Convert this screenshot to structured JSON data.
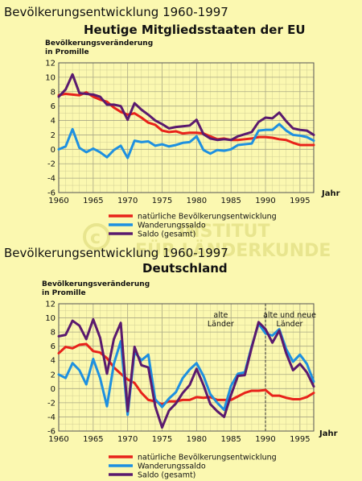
{
  "page": {
    "title1": "Bevölkerungsentwicklung 1960-1997",
    "title2": "Bevölkerungsentwicklung 1960-1997",
    "watermark": [
      "INSTITUT",
      "FÜR LÄNDERKUNDE"
    ]
  },
  "colors": {
    "background": "#fbf8b0",
    "natural": "#e8221a",
    "migration": "#1e90e0",
    "total": "#5a1a6e"
  },
  "chart_data": [
    {
      "type": "line",
      "title": "Heutige Mitgliedsstaaten der EU",
      "ylabel": "Bevölkerungsveränderung",
      "ylabel2": "in Promille",
      "xlabel": "Jahr",
      "ylim": [
        -6,
        12
      ],
      "xlim": [
        1960,
        1997
      ],
      "grid": true,
      "x_ticks": [
        1960,
        1965,
        1970,
        1975,
        1980,
        1985,
        1990,
        1995
      ],
      "y_ticks": [
        -6,
        -4,
        -2,
        0,
        2,
        4,
        6,
        8,
        10,
        12
      ],
      "annotations": [],
      "legend": [
        "natürliche Bevölkerungsentwicklung",
        "Wanderungssaldo",
        "Saldo (gesamt)"
      ],
      "x": [
        1960,
        1961,
        1962,
        1963,
        1964,
        1965,
        1966,
        1967,
        1968,
        1969,
        1970,
        1971,
        1972,
        1973,
        1974,
        1975,
        1976,
        1977,
        1978,
        1979,
        1980,
        1981,
        1982,
        1983,
        1984,
        1985,
        1986,
        1987,
        1988,
        1989,
        1990,
        1991,
        1992,
        1993,
        1994,
        1995,
        1996,
        1997
      ],
      "series": [
        {
          "name": "natürliche Bevölkerungsentwicklung",
          "color": "natural",
          "values": [
            7.5,
            7.7,
            7.6,
            7.5,
            7.9,
            7.3,
            6.9,
            6.6,
            5.8,
            5.2,
            4.8,
            5.0,
            4.4,
            3.7,
            3.4,
            2.6,
            2.4,
            2.5,
            2.2,
            2.3,
            2.3,
            2.2,
            1.8,
            1.4,
            1.5,
            1.3,
            1.3,
            1.4,
            1.5,
            1.7,
            1.7,
            1.6,
            1.4,
            1.3,
            0.9,
            0.6,
            0.6,
            0.6
          ]
        },
        {
          "name": "Wanderungssaldo",
          "color": "migration",
          "values": [
            0.0,
            0.4,
            2.8,
            0.2,
            -0.4,
            0.1,
            -0.4,
            -1.1,
            -0.1,
            0.5,
            -1.2,
            1.2,
            1.0,
            1.1,
            0.5,
            0.7,
            0.4,
            0.6,
            0.9,
            1.0,
            1.8,
            -0.1,
            -0.6,
            -0.1,
            -0.2,
            0.0,
            0.6,
            0.7,
            0.8,
            2.6,
            2.7,
            2.7,
            3.5,
            2.6,
            2.0,
            1.9,
            1.7,
            1.2
          ]
        },
        {
          "name": "Saldo (gesamt)",
          "color": "total",
          "values": [
            7.3,
            8.3,
            10.4,
            7.8,
            7.7,
            7.6,
            7.3,
            6.2,
            6.2,
            6.0,
            4.1,
            6.4,
            5.5,
            4.8,
            4.0,
            3.5,
            2.9,
            3.1,
            3.2,
            3.3,
            4.1,
            2.1,
            1.5,
            1.3,
            1.4,
            1.3,
            1.8,
            2.1,
            2.4,
            3.8,
            4.4,
            4.3,
            5.1,
            3.9,
            2.9,
            2.7,
            2.6,
            2.0
          ]
        }
      ]
    },
    {
      "type": "line",
      "title": "Deutschland",
      "ylabel": "Bevölkerungsveränderung",
      "ylabel2": "in Promille",
      "xlabel": "Jahr",
      "ylim": [
        -6,
        12
      ],
      "xlim": [
        1960,
        1997
      ],
      "grid": true,
      "x_ticks": [
        1960,
        1965,
        1970,
        1975,
        1980,
        1985,
        1990,
        1995
      ],
      "y_ticks": [
        -6,
        -4,
        -2,
        0,
        2,
        4,
        6,
        8,
        10,
        12
      ],
      "divider_x": 1990,
      "annotations": [
        {
          "x": 1983.5,
          "lines": [
            "alte",
            "Länder"
          ]
        },
        {
          "x": 1993.5,
          "lines": [
            "alte und neue",
            "Länder"
          ]
        }
      ],
      "legend": [
        "natürliche Bevölkerungsentwicklung",
        "Wanderungssaldo",
        "Saldo (gesamt)"
      ],
      "x": [
        1960,
        1961,
        1962,
        1963,
        1964,
        1965,
        1966,
        1967,
        1968,
        1969,
        1970,
        1971,
        1972,
        1973,
        1974,
        1975,
        1976,
        1977,
        1978,
        1979,
        1980,
        1981,
        1982,
        1983,
        1984,
        1985,
        1986,
        1987,
        1988,
        1989,
        1990,
        1991,
        1992,
        1993,
        1994,
        1995,
        1996,
        1997
      ],
      "series": [
        {
          "name": "natürliche Bevölkerungsentwicklung",
          "color": "natural",
          "values": [
            5.0,
            5.9,
            5.7,
            6.2,
            6.3,
            5.3,
            5.1,
            4.3,
            3.0,
            2.1,
            1.3,
            0.8,
            -0.6,
            -1.6,
            -1.8,
            -2.2,
            -1.8,
            -1.8,
            -1.6,
            -1.6,
            -1.2,
            -1.3,
            -1.2,
            -1.6,
            -1.6,
            -1.6,
            -1.1,
            -0.6,
            -0.3,
            -0.3,
            -0.2,
            -1.0,
            -1.0,
            -1.3,
            -1.5,
            -1.5,
            -1.2,
            -0.6
          ]
        },
        {
          "name": "Wanderungssaldo",
          "color": "migration",
          "values": [
            2.0,
            1.5,
            3.6,
            2.6,
            0.6,
            4.2,
            1.5,
            -2.5,
            3.5,
            6.7,
            -3.7,
            5.2,
            4.0,
            4.8,
            -1.5,
            -2.6,
            -1.4,
            -0.5,
            1.5,
            2.7,
            3.6,
            1.8,
            -0.8,
            -2.0,
            -3.0,
            0.4,
            2.1,
            2.3,
            6.0,
            9.2,
            7.8,
            7.5,
            8.4,
            5.6,
            3.8,
            4.8,
            3.5,
            1.0
          ]
        },
        {
          "name": "Saldo (gesamt)",
          "color": "total",
          "values": [
            7.4,
            7.6,
            9.6,
            8.9,
            7.0,
            9.8,
            7.2,
            2.1,
            7.0,
            9.3,
            -3.2,
            5.9,
            3.3,
            3.0,
            -2.5,
            -5.5,
            -3.1,
            -2.1,
            -0.6,
            0.5,
            2.8,
            0.5,
            -2.2,
            -3.2,
            -4.0,
            -0.9,
            1.8,
            1.9,
            5.8,
            9.4,
            8.4,
            6.5,
            8.2,
            5.0,
            2.6,
            3.5,
            2.3,
            0.3
          ]
        }
      ]
    }
  ]
}
